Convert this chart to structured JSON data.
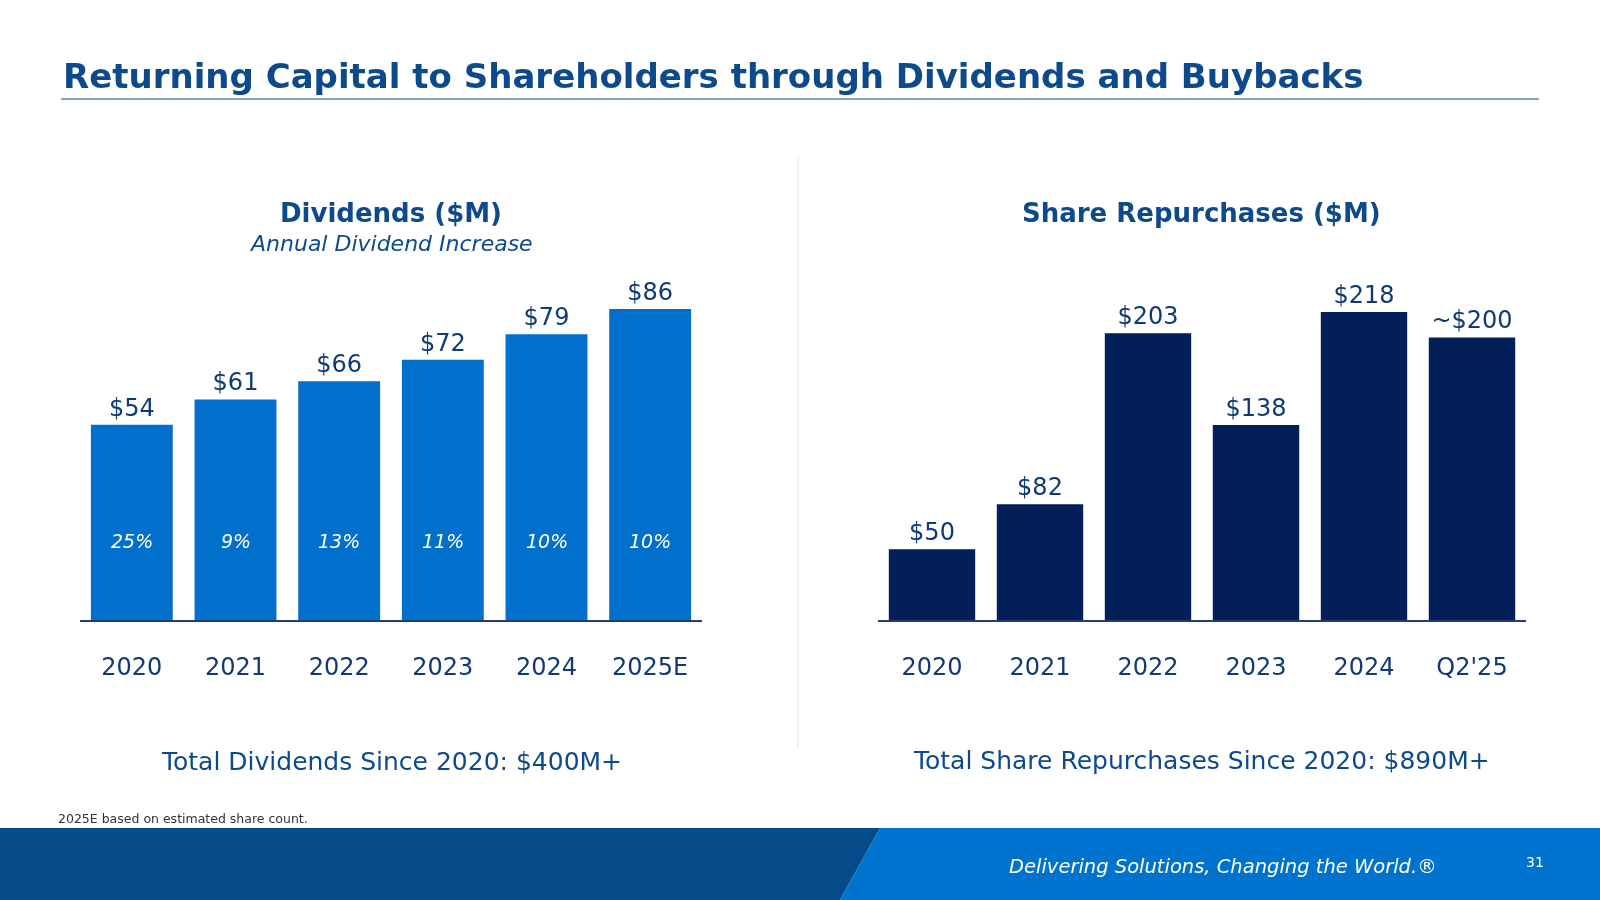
{
  "chart_data": [
    {
      "type": "bar",
      "title": "Dividends ($M)",
      "subtitle": "Annual Dividend Increase",
      "categories": [
        "2020",
        "2021",
        "2022",
        "2023",
        "2024",
        "2025E"
      ],
      "values": [
        54,
        61,
        66,
        72,
        79,
        86
      ],
      "color": "#0070cc",
      "value_labels": [
        "$54",
        "$61",
        "$66",
        "$72",
        "$79",
        "$86"
      ],
      "tick_labels": "x",
      "annotations": [
        "Returning Capital to Shareholders through Dividends and Buybacks",
        "Total Dividends Since 2020: $400M+",
        "2025E based on estimated share count.",
        "25%",
        "9%",
        "13%",
        "11%",
        "10%",
        "10%"
      ]
    },
    {
      "type": "bar",
      "title": "Share Repurchases ($M)",
      "categories": [
        "2020",
        "2021",
        "2022",
        "2023",
        "2024",
        "Q2'25"
      ],
      "values": [
        50,
        82,
        203,
        138,
        218,
        200
      ],
      "color": "#021f5a",
      "value_labels": [
        "$50",
        "$82",
        "$203",
        "$138",
        "$218",
        "~$200"
      ],
      "tick_labels": "x",
      "annotations": [
        "Total Share Repurchases Since 2020: $890M+",
        "Delivering Solutions, Changing the World.®",
        "31"
      ]
    }
  ]
}
